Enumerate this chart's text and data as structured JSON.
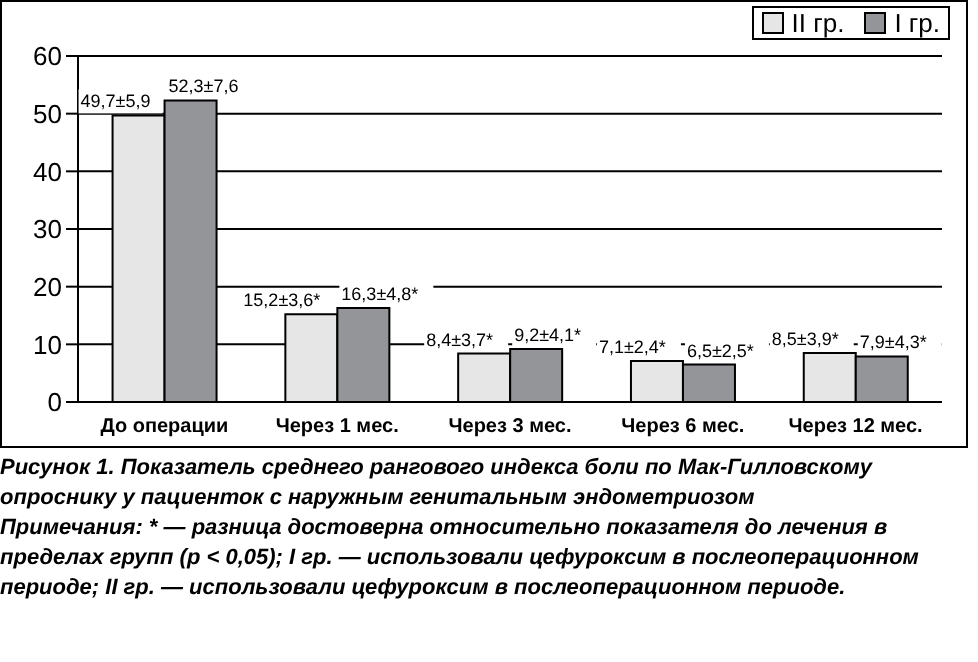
{
  "chart_data": {
    "type": "bar",
    "title": "Рисунок 1. Показатель среднего рангового индекса боли по Мак-Гилловскому опроснику у пациенток с наружным генитальным эндометриозом",
    "annotations": [
      "Примечания: * — разница достоверна относительно показателя до лечения в пределах групп (p < 0,05); I гр. — использовали цефуроксим в послеоперационном периоде; II гр. — использовали цефуроксим в послеоперационном периоде."
    ],
    "categories": [
      "До операции",
      "Через 1 мес.",
      "Через 3 мес.",
      "Через 6 мес.",
      "Через 12 мес."
    ],
    "series": [
      {
        "name": "II гр.",
        "color": "#e6e6e6",
        "values": [
          49.7,
          15.2,
          8.4,
          7.1,
          8.5
        ],
        "value_labels": [
          "49,7±5,9",
          "15,2±3,6*",
          "8,4±3,7*",
          "7,1±2,4*",
          "8,5±3,9*"
        ]
      },
      {
        "name": "I гр.",
        "color": "#939598",
        "values": [
          52.3,
          16.3,
          9.2,
          6.5,
          7.9
        ],
        "value_labels": [
          "52,3±7,6",
          "16,3±4,8*",
          "9,2±4,1*",
          "6,5±2,5*",
          "7,9±4,3*"
        ]
      }
    ],
    "ylim": [
      0,
      60
    ],
    "yticks": [
      0,
      10,
      20,
      30,
      40,
      50,
      60
    ],
    "grid": "y",
    "legend": "top right"
  }
}
